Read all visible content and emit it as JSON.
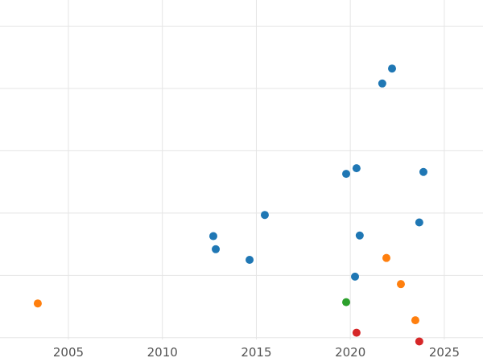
{
  "chart": {
    "background_color": "#ffffff",
    "grid_color": "#e5e5e5",
    "tick_label_color": "#535353",
    "point_radius": 5
  },
  "chart_data": {
    "type": "scatter",
    "title": "",
    "xlabel": "",
    "ylabel": "",
    "grid": true,
    "legend": "none",
    "x_ticks": [
      2005,
      2010,
      2015,
      2020,
      2025
    ],
    "xlim": [
      2001.36,
      2027.06
    ],
    "ylim": [
      -0.39,
      5.42
    ],
    "y_gridlines": [
      0,
      1,
      2,
      3,
      4,
      5
    ],
    "series": [
      {
        "name": "blue",
        "color": "#1f77b4",
        "points": [
          [
            2012.71,
            1.63
          ],
          [
            2012.84,
            1.42
          ],
          [
            2014.64,
            1.25
          ],
          [
            2015.45,
            1.97
          ],
          [
            2019.78,
            2.63
          ],
          [
            2020.33,
            2.72
          ],
          [
            2020.25,
            0.98
          ],
          [
            2020.5,
            1.64
          ],
          [
            2021.7,
            4.08
          ],
          [
            2022.22,
            4.32
          ],
          [
            2023.67,
            1.85
          ],
          [
            2023.89,
            2.66
          ]
        ]
      },
      {
        "name": "orange",
        "color": "#ff7f0e",
        "points": [
          [
            2003.37,
            0.55
          ],
          [
            2021.92,
            1.28
          ],
          [
            2022.69,
            0.86
          ],
          [
            2023.46,
            0.28
          ]
        ]
      },
      {
        "name": "green",
        "color": "#2ca02c",
        "points": [
          [
            2019.78,
            0.57
          ]
        ]
      },
      {
        "name": "red",
        "color": "#d62728",
        "points": [
          [
            2020.33,
            0.08
          ],
          [
            2023.67,
            -0.06
          ]
        ]
      }
    ]
  }
}
